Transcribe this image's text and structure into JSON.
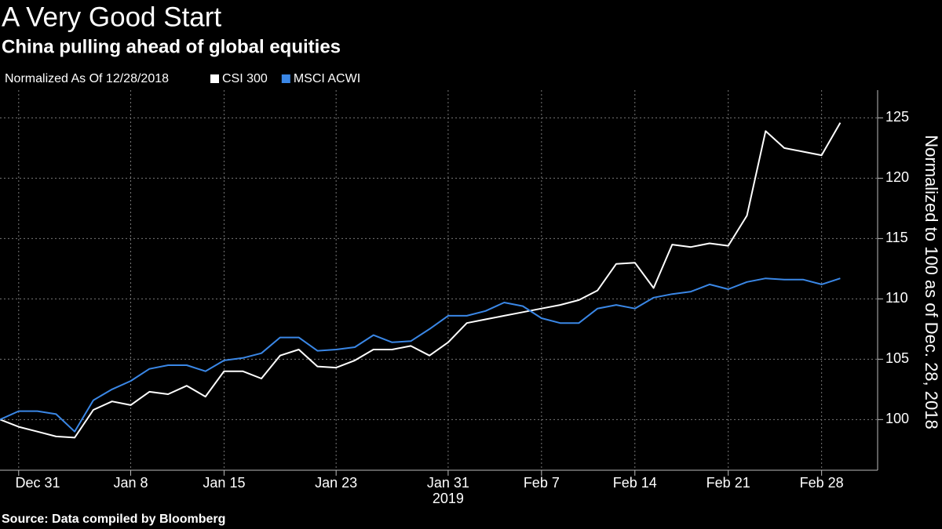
{
  "chart_data": {
    "type": "line",
    "title": "A Very Good Start",
    "subtitle": "China pulling ahead of global equities",
    "legend_title": "Normalized As Of 12/28/2018",
    "y_axis_label": "Normalized to 100 as of Dec. 28, 2018",
    "source": "Source: Data compiled by Bloomberg",
    "x_scale": "weekdays",
    "x": [
      "2018-12-28",
      "2018-12-31",
      "2019-01-01",
      "2019-01-02",
      "2019-01-03",
      "2019-01-04",
      "2019-01-07",
      "2019-01-08",
      "2019-01-09",
      "2019-01-10",
      "2019-01-11",
      "2019-01-14",
      "2019-01-15",
      "2019-01-16",
      "2019-01-17",
      "2019-01-18",
      "2019-01-21",
      "2019-01-22",
      "2019-01-23",
      "2019-01-24",
      "2019-01-25",
      "2019-01-28",
      "2019-01-29",
      "2019-01-30",
      "2019-01-31",
      "2019-02-01",
      "2019-02-04",
      "2019-02-05",
      "2019-02-06",
      "2019-02-07",
      "2019-02-08",
      "2019-02-11",
      "2019-02-12",
      "2019-02-13",
      "2019-02-14",
      "2019-02-15",
      "2019-02-18",
      "2019-02-19",
      "2019-02-20",
      "2019-02-21",
      "2019-02-22",
      "2019-02-25",
      "2019-02-26",
      "2019-02-27",
      "2019-02-28",
      "2019-03-01"
    ],
    "series": [
      {
        "name": "CSI 300",
        "color": "#ffffff",
        "values": [
          100,
          99.4,
          99.0,
          98.6,
          98.5,
          100.8,
          101.5,
          101.2,
          102.3,
          102.1,
          102.8,
          101.9,
          104.0,
          104.0,
          103.4,
          105.3,
          105.8,
          104.4,
          104.3,
          104.9,
          105.8,
          105.8,
          106.1,
          105.3,
          106.4,
          108.0,
          108.3,
          108.6,
          108.9,
          109.2,
          109.5,
          109.9,
          110.7,
          112.9,
          113.0,
          110.9,
          114.5,
          114.3,
          114.6,
          114.4,
          116.9,
          123.9,
          122.5,
          122.2,
          121.9,
          124.6
        ]
      },
      {
        "name": "MSCI ACWI",
        "color": "#3a87e6",
        "values": [
          100,
          100.7,
          100.7,
          100.45,
          99.0,
          101.6,
          102.5,
          103.2,
          104.2,
          104.5,
          104.5,
          104.0,
          104.9,
          105.1,
          105.5,
          106.8,
          106.8,
          105.7,
          105.8,
          106.0,
          107.0,
          106.4,
          106.5,
          107.5,
          108.6,
          108.6,
          109.0,
          109.7,
          109.4,
          108.4,
          108.0,
          108.0,
          109.2,
          109.5,
          109.2,
          110.1,
          110.4,
          110.6,
          111.2,
          110.8,
          111.4,
          111.7,
          111.6,
          111.6,
          111.2,
          111.7
        ]
      }
    ],
    "xlim": [
      "2018-12-28",
      "2019-03-05"
    ],
    "xticks": [
      {
        "value": "2018-12-31",
        "label": "Dec 31"
      },
      {
        "value": "2019-01-08",
        "label": "Jan 8"
      },
      {
        "value": "2019-01-15",
        "label": "Jan 15"
      },
      {
        "value": "2019-01-23",
        "label": "Jan 23"
      },
      {
        "value": "2019-01-31",
        "label": "Jan 31"
      },
      {
        "value": "2019-02-07",
        "label": "Feb 7"
      },
      {
        "value": "2019-02-14",
        "label": "Feb 14"
      },
      {
        "value": "2019-02-21",
        "label": "Feb 21"
      },
      {
        "value": "2019-02-28",
        "label": "Feb 28"
      }
    ],
    "xtick_sublabels": [
      {
        "value": "2019-01-31",
        "label": "2019"
      }
    ],
    "ylim": [
      95.8,
      127.3
    ],
    "yticks": [
      100,
      105,
      110,
      115,
      120,
      125
    ],
    "grid": true
  }
}
